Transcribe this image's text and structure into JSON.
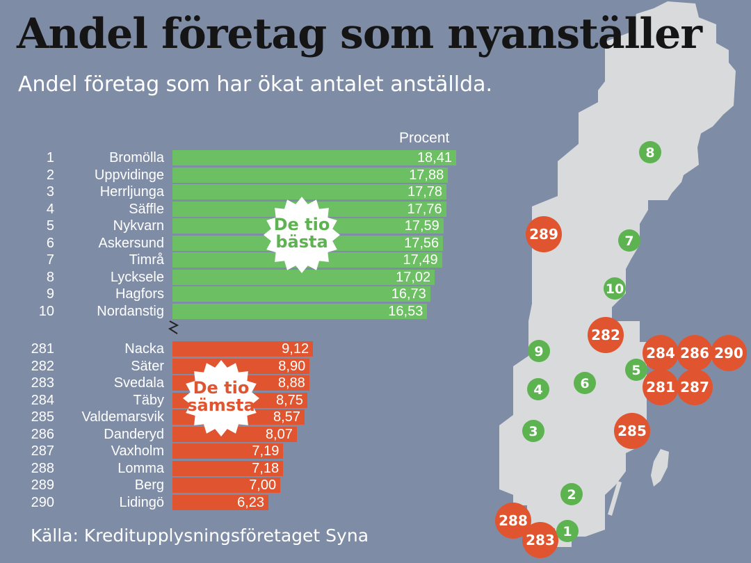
{
  "title": "Andel företag som nyanställer",
  "subtitle": "Andel företag som har ökat antalet anställda.",
  "source": "Källa: Kreditupplysningsföretaget Syna",
  "badges": {
    "best": "De tio bästa",
    "worst": "De tio sämsta"
  },
  "colors": {
    "background": "#7e8ca6",
    "best": "#6cbf63",
    "worst": "#e0552f",
    "map": "#d9dadc",
    "title": "#151515"
  },
  "chart_data": {
    "type": "bar",
    "orientation": "horizontal",
    "unit": "Procent",
    "xlim": [
      0,
      18.41
    ],
    "axis_break": true,
    "groups": [
      {
        "key": "best",
        "rows": [
          {
            "rank": 1,
            "name": "Bromölla",
            "value": 18.41,
            "label": "18,41"
          },
          {
            "rank": 2,
            "name": "Uppvidinge",
            "value": 17.88,
            "label": "17,88"
          },
          {
            "rank": 3,
            "name": "Herrljunga",
            "value": 17.78,
            "label": "17,78"
          },
          {
            "rank": 4,
            "name": "Säffle",
            "value": 17.76,
            "label": "17,76"
          },
          {
            "rank": 5,
            "name": "Nykvarn",
            "value": 17.59,
            "label": "17,59"
          },
          {
            "rank": 6,
            "name": "Askersund",
            "value": 17.56,
            "label": "17,56"
          },
          {
            "rank": 7,
            "name": "Timrå",
            "value": 17.49,
            "label": "17,49"
          },
          {
            "rank": 8,
            "name": "Lycksele",
            "value": 17.02,
            "label": "17,02"
          },
          {
            "rank": 9,
            "name": "Hagfors",
            "value": 16.73,
            "label": "16,73"
          },
          {
            "rank": 10,
            "name": "Nordanstig",
            "value": 16.53,
            "label": "16,53"
          }
        ]
      },
      {
        "key": "worst",
        "rows": [
          {
            "rank": 281,
            "name": "Nacka",
            "value": 9.12,
            "label": "9,12"
          },
          {
            "rank": 282,
            "name": "Säter",
            "value": 8.9,
            "label": "8,90"
          },
          {
            "rank": 283,
            "name": "Svedala",
            "value": 8.88,
            "label": "8,88"
          },
          {
            "rank": 284,
            "name": "Täby",
            "value": 8.75,
            "label": "8,75"
          },
          {
            "rank": 285,
            "name": "Valdemarsvik",
            "value": 8.57,
            "label": "8,57"
          },
          {
            "rank": 286,
            "name": "Danderyd",
            "value": 8.07,
            "label": "8,07"
          },
          {
            "rank": 287,
            "name": "Vaxholm",
            "value": 7.19,
            "label": "7,19"
          },
          {
            "rank": 288,
            "name": "Lomma",
            "value": 7.18,
            "label": "7,18"
          },
          {
            "rank": 289,
            "name": "Berg",
            "value": 7.0,
            "label": "7,00"
          },
          {
            "rank": 290,
            "name": "Lidingö",
            "value": 6.23,
            "label": "6,23"
          }
        ]
      }
    ]
  },
  "map_markers": [
    {
      "label": "8",
      "group": "best"
    },
    {
      "label": "289",
      "group": "worst"
    },
    {
      "label": "7",
      "group": "best"
    },
    {
      "label": "10",
      "group": "best"
    },
    {
      "label": "282",
      "group": "worst"
    },
    {
      "label": "9",
      "group": "best"
    },
    {
      "label": "284",
      "group": "worst"
    },
    {
      "label": "286",
      "group": "worst"
    },
    {
      "label": "290",
      "group": "worst"
    },
    {
      "label": "5",
      "group": "best"
    },
    {
      "label": "4",
      "group": "best"
    },
    {
      "label": "6",
      "group": "best"
    },
    {
      "label": "281",
      "group": "worst"
    },
    {
      "label": "287",
      "group": "worst"
    },
    {
      "label": "3",
      "group": "best"
    },
    {
      "label": "285",
      "group": "worst"
    },
    {
      "label": "2",
      "group": "best"
    },
    {
      "label": "288",
      "group": "worst"
    },
    {
      "label": "283",
      "group": "worst"
    },
    {
      "label": "1",
      "group": "best"
    }
  ]
}
